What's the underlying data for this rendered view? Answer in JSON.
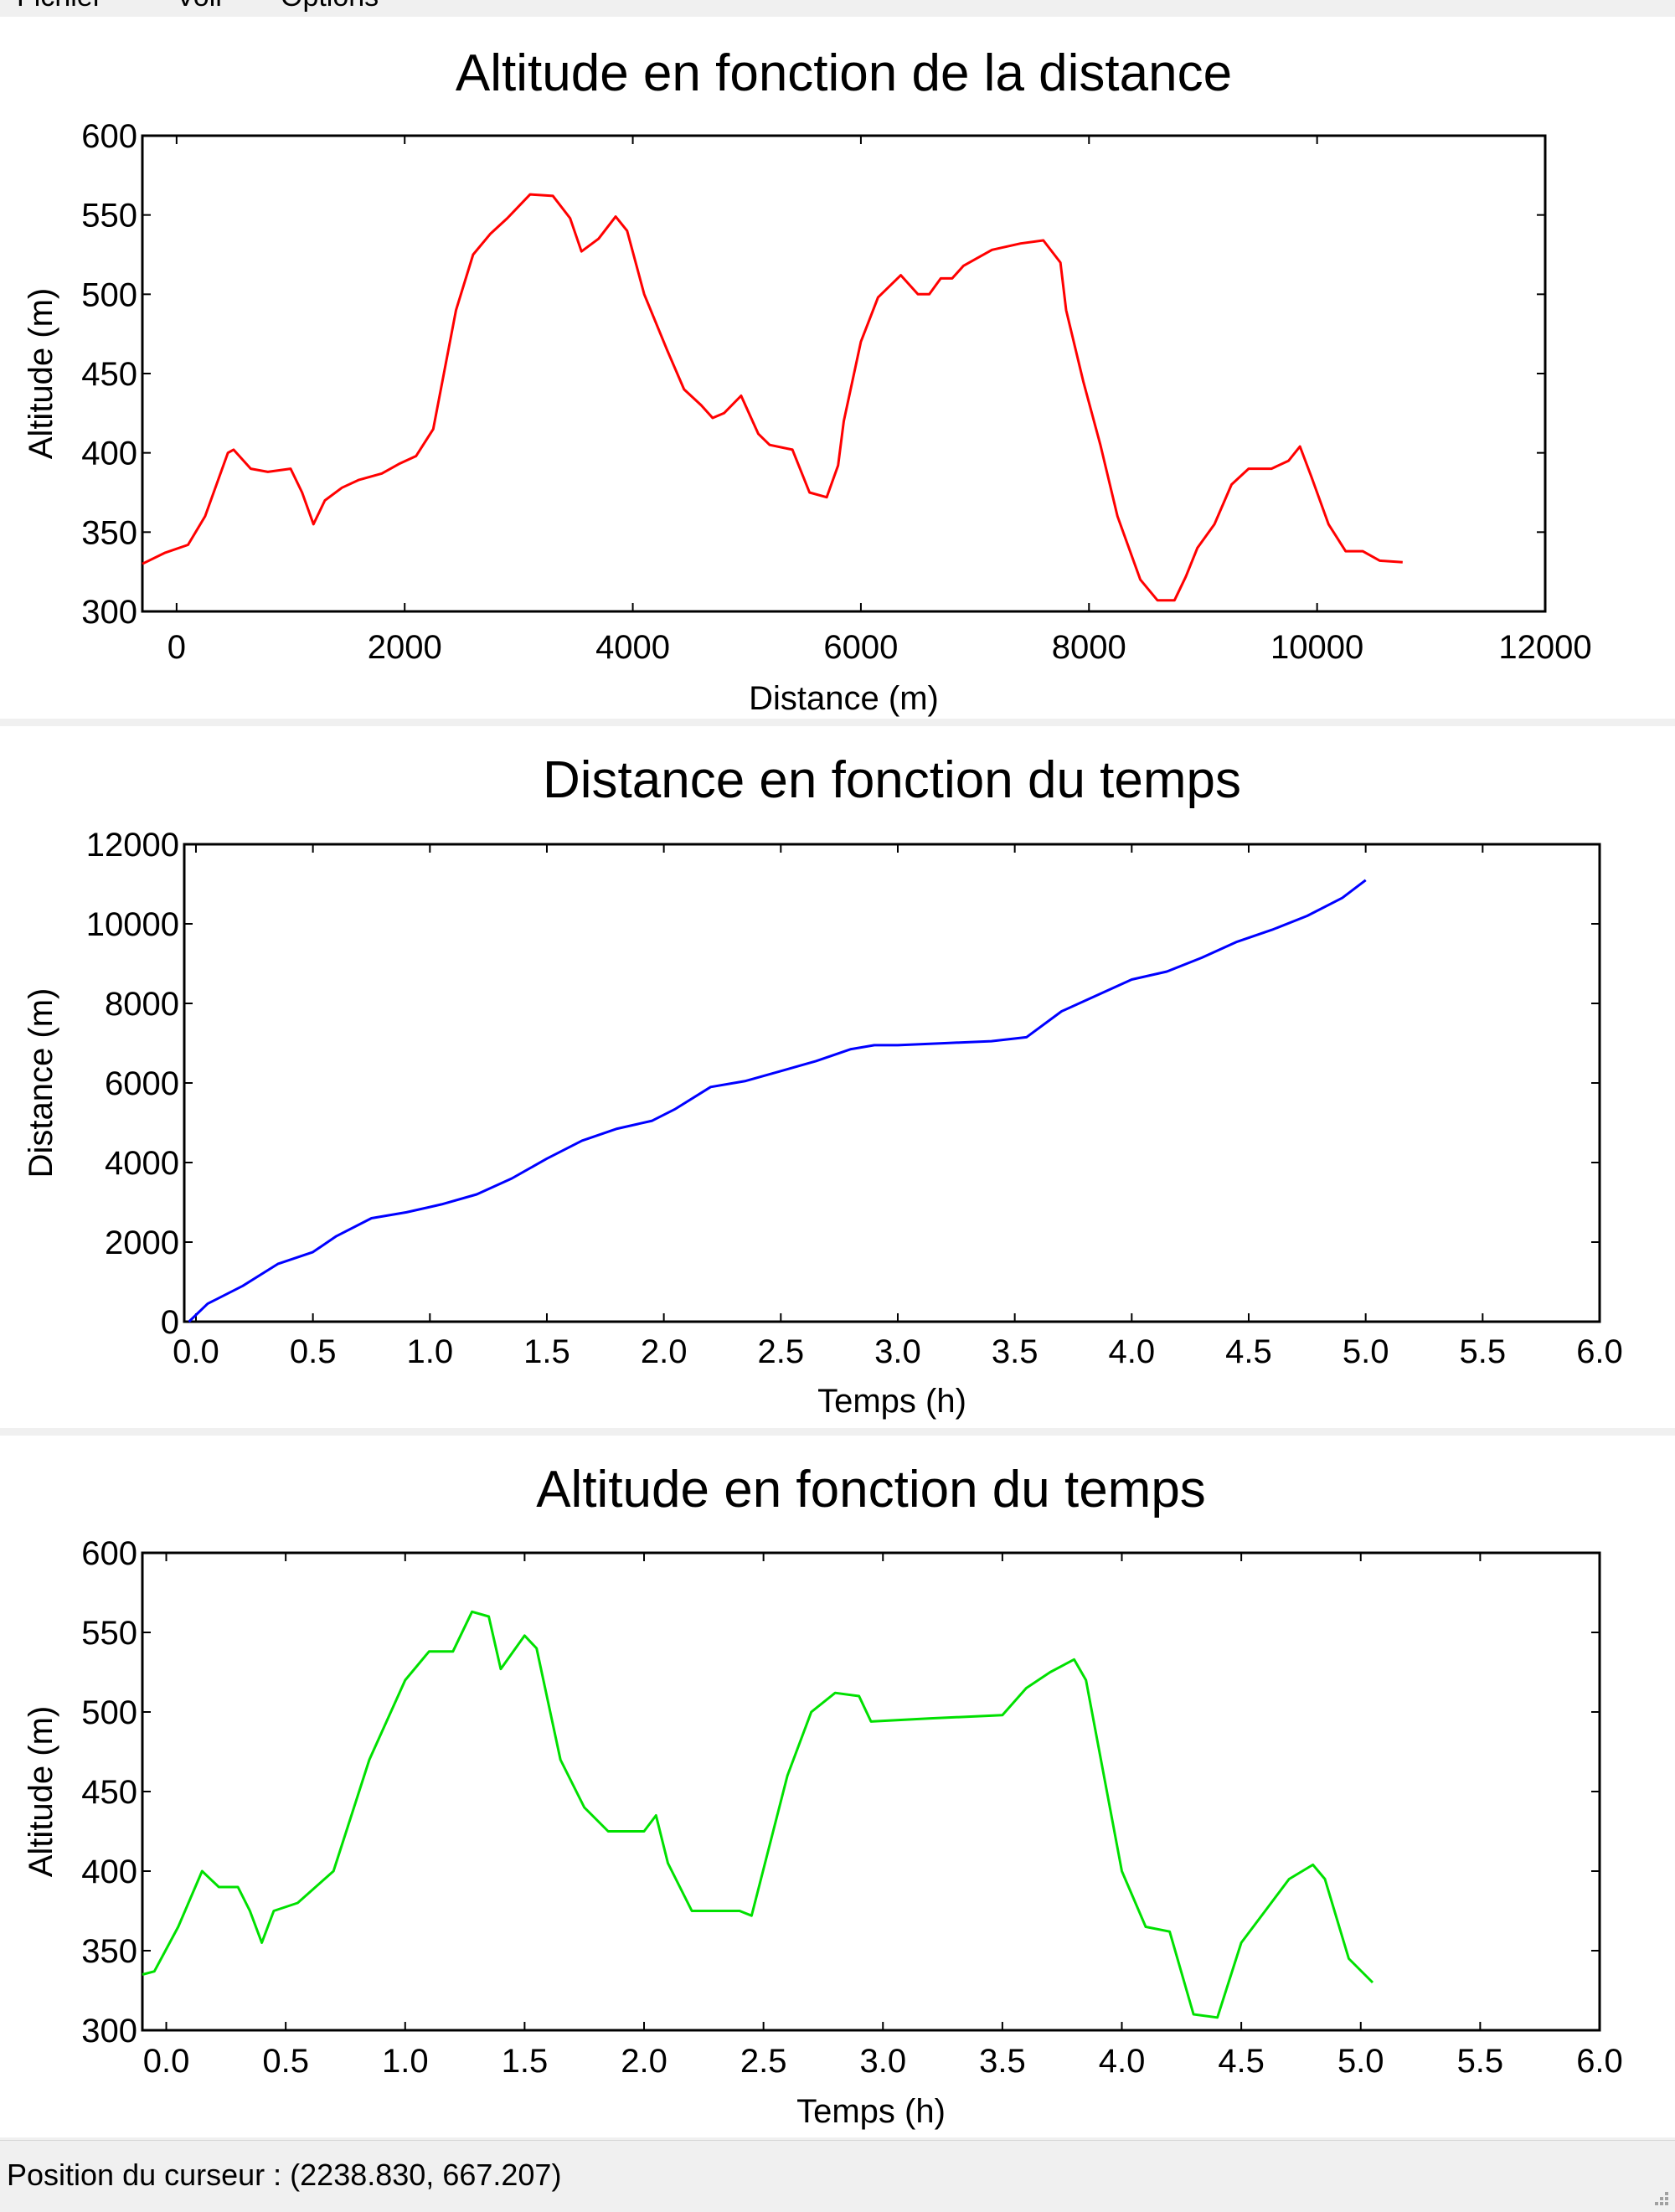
{
  "menu": {
    "items": [
      {
        "label": "Fichier"
      },
      {
        "label": "Voir"
      },
      {
        "label": "Options"
      }
    ]
  },
  "status_bar": {
    "text": "Position du curseur : (2238.830, 667.207)"
  },
  "chart_data": [
    {
      "type": "line",
      "title": "Altitude en fonction de la distance",
      "xlabel": "Distance (m)",
      "ylabel": "Altitude (m)",
      "xlim": [
        -300,
        12000
      ],
      "ylim": [
        300,
        600
      ],
      "xticks": [
        0,
        2000,
        4000,
        6000,
        8000,
        10000,
        12000
      ],
      "xtick_labels": [
        "0",
        "2000",
        "4000",
        "6000",
        "8000",
        "10000",
        "12000"
      ],
      "yticks": [
        300,
        350,
        400,
        450,
        500,
        550,
        600
      ],
      "ytick_labels": [
        "300",
        "350",
        "400",
        "450",
        "500",
        "550",
        "600"
      ],
      "grid": false,
      "color": "#ff0000",
      "x": [
        -300,
        -100,
        100,
        250,
        450,
        500,
        650,
        800,
        1000,
        1100,
        1200,
        1300,
        1450,
        1600,
        1800,
        1950,
        2100,
        2250,
        2450,
        2600,
        2750,
        2900,
        3100,
        3300,
        3450,
        3550,
        3700,
        3850,
        3950,
        4100,
        4300,
        4450,
        4600,
        4700,
        4800,
        4950,
        5100,
        5200,
        5400,
        5550,
        5700,
        5800,
        5850,
        6000,
        6150,
        6350,
        6500,
        6600,
        6700,
        6800,
        6900,
        7000,
        7150,
        7400,
        7600,
        7750,
        7800,
        7950,
        8100,
        8250,
        8450,
        8600,
        8750,
        8850,
        8950,
        9100,
        9250,
        9400,
        9600,
        9750,
        9850,
        9950,
        10100,
        10250,
        10400,
        10550,
        10750
      ],
      "y": [
        330,
        337,
        342,
        360,
        400,
        402,
        390,
        388,
        390,
        375,
        355,
        370,
        378,
        383,
        387,
        393,
        398,
        415,
        490,
        525,
        538,
        548,
        563,
        562,
        548,
        527,
        535,
        549,
        540,
        500,
        465,
        440,
        430,
        422,
        425,
        436,
        412,
        405,
        402,
        375,
        372,
        392,
        420,
        470,
        498,
        512,
        500,
        500,
        510,
        510,
        518,
        522,
        528,
        532,
        534,
        520,
        490,
        445,
        405,
        360,
        320,
        307,
        307,
        322,
        340,
        355,
        380,
        390,
        390,
        395,
        404,
        385,
        355,
        338,
        338,
        332,
        331
      ]
    },
    {
      "type": "line",
      "title": "Distance en fonction du temps",
      "xlabel": "Temps (h)",
      "ylabel": "Distance (m)",
      "xlim": [
        -0.05,
        6.0
      ],
      "ylim": [
        0,
        12000
      ],
      "xticks": [
        0.0,
        0.5,
        1.0,
        1.5,
        2.0,
        2.5,
        3.0,
        3.5,
        4.0,
        4.5,
        5.0,
        5.5,
        6.0
      ],
      "xtick_labels": [
        "0.0",
        "0.5",
        "1.0",
        "1.5",
        "2.0",
        "2.5",
        "3.0",
        "3.5",
        "4.0",
        "4.5",
        "5.0",
        "5.5",
        "6.0"
      ],
      "yticks": [
        0,
        2000,
        4000,
        6000,
        8000,
        10000,
        12000
      ],
      "ytick_labels": [
        "0",
        "2000",
        "4000",
        "6000",
        "8000",
        "10000",
        "12000"
      ],
      "grid": false,
      "color": "#0000ff",
      "x": [
        -0.03,
        0.05,
        0.2,
        0.35,
        0.5,
        0.6,
        0.75,
        0.9,
        1.05,
        1.2,
        1.35,
        1.5,
        1.65,
        1.8,
        1.95,
        2.05,
        2.2,
        2.35,
        2.5,
        2.65,
        2.8,
        2.9,
        3.0,
        3.2,
        3.4,
        3.55,
        3.7,
        3.85,
        4.0,
        4.15,
        4.3,
        4.45,
        4.6,
        4.75,
        4.9,
        5.0
      ],
      "y": [
        0,
        450,
        900,
        1450,
        1750,
        2150,
        2600,
        2750,
        2950,
        3200,
        3600,
        4100,
        4550,
        4850,
        5050,
        5350,
        5900,
        6050,
        6300,
        6550,
        6850,
        6950,
        6950,
        7000,
        7050,
        7150,
        7800,
        8200,
        8600,
        8800,
        9150,
        9550,
        9850,
        10200,
        10650,
        11100
      ]
    },
    {
      "type": "line",
      "title": "Altitude en fonction du temps",
      "xlabel": "Temps (h)",
      "ylabel": "Altitude (m)",
      "xlim": [
        -0.1,
        6.0
      ],
      "ylim": [
        300,
        600
      ],
      "xticks": [
        0.0,
        0.5,
        1.0,
        1.5,
        2.0,
        2.5,
        3.0,
        3.5,
        4.0,
        4.5,
        5.0,
        5.5,
        6.0
      ],
      "xtick_labels": [
        "0.0",
        "0.5",
        "1.0",
        "1.5",
        "2.0",
        "2.5",
        "3.0",
        "3.5",
        "4.0",
        "4.5",
        "5.0",
        "5.5",
        "6.0"
      ],
      "yticks": [
        300,
        350,
        400,
        450,
        500,
        550,
        600
      ],
      "ytick_labels": [
        "300",
        "350",
        "400",
        "450",
        "500",
        "550",
        "600"
      ],
      "grid": false,
      "color": "#00e000",
      "x": [
        -0.1,
        -0.05,
        0.05,
        0.15,
        0.22,
        0.3,
        0.35,
        0.4,
        0.45,
        0.55,
        0.7,
        0.85,
        1.0,
        1.1,
        1.2,
        1.28,
        1.35,
        1.4,
        1.5,
        1.55,
        1.65,
        1.75,
        1.85,
        2.0,
        2.05,
        2.1,
        2.2,
        2.4,
        2.45,
        2.6,
        2.7,
        2.8,
        2.9,
        2.95,
        3.2,
        3.5,
        3.6,
        3.7,
        3.8,
        3.85,
        4.0,
        4.1,
        4.2,
        4.3,
        4.4,
        4.5,
        4.6,
        4.7,
        4.8,
        4.85,
        4.95,
        5.05
      ],
      "y": [
        335,
        337,
        365,
        400,
        390,
        390,
        375,
        355,
        375,
        380,
        400,
        470,
        520,
        538,
        538,
        563,
        560,
        527,
        548,
        540,
        470,
        440,
        425,
        425,
        435,
        405,
        375,
        375,
        372,
        460,
        500,
        512,
        510,
        494,
        496,
        498,
        515,
        525,
        533,
        520,
        400,
        365,
        362,
        310,
        308,
        355,
        375,
        395,
        404,
        395,
        345,
        330
      ]
    }
  ]
}
